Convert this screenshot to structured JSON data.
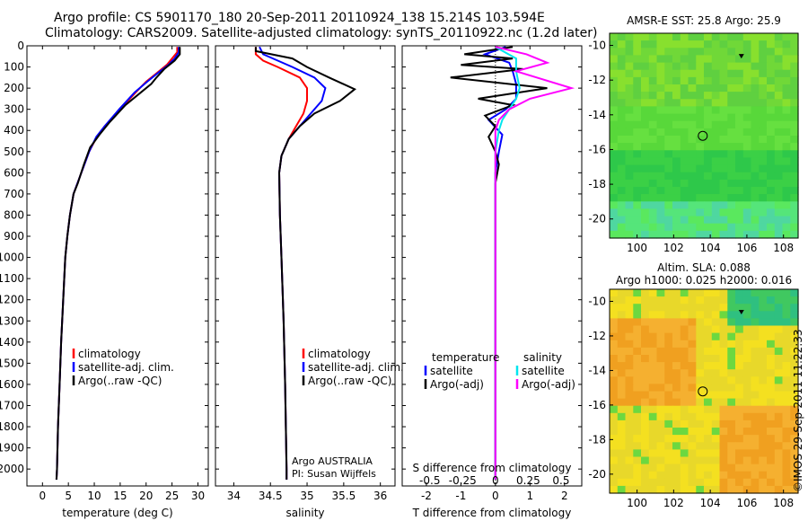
{
  "header": {
    "line1": "Argo profile: CS 5901170_180 20-Sep-2011 20110924_138 15.214S 103.594E",
    "line2": "Climatology: CARS2009. Satellite-adjusted climatology: synTS_20110922.nc (1.2d later)"
  },
  "colors": {
    "climatology": "#ff0000",
    "satellite": "#0000ff",
    "argo": "#000000",
    "sat_salinity": "#00e5ee",
    "argo_salinity_adj": "#ff00ff"
  },
  "chart_data": [
    {
      "type": "line",
      "id": "temperature",
      "xlabel": "temperature (deg C)",
      "xlim": [
        -3,
        32
      ],
      "ylim": [
        2080,
        0
      ],
      "xticks": [
        0,
        5,
        10,
        15,
        20,
        25,
        30
      ],
      "yticks": [
        0,
        100,
        200,
        300,
        400,
        500,
        600,
        700,
        800,
        900,
        1000,
        1100,
        1200,
        1300,
        1400,
        1500,
        1600,
        1700,
        1800,
        1900,
        2000
      ],
      "legend": [
        "climatology",
        "satellite-adj. clim.",
        "Argo(..raw -QC)"
      ],
      "series": [
        {
          "name": "climatology",
          "color": "#ff0000",
          "points": [
            [
              26,
              5
            ],
            [
              26,
              30
            ],
            [
              25,
              60
            ],
            [
              24,
              90
            ],
            [
              22,
              130
            ],
            [
              20,
              170
            ],
            [
              18,
              220
            ],
            [
              15,
              300
            ],
            [
              12,
              380
            ],
            [
              10.5,
              430
            ],
            [
              9,
              500
            ],
            [
              7.5,
              600
            ],
            [
              6,
              700
            ],
            [
              5.3,
              800
            ],
            [
              4.8,
              900
            ],
            [
              4.4,
              1000
            ],
            [
              4,
              1200
            ],
            [
              3.6,
              1400
            ],
            [
              3.3,
              1600
            ],
            [
              3,
              1800
            ],
            [
              2.8,
              2000
            ],
            [
              2.7,
              2050
            ]
          ]
        },
        {
          "name": "satellite-adj. clim.",
          "color": "#0000ff",
          "points": [
            [
              26.3,
              5
            ],
            [
              26.3,
              30
            ],
            [
              25.5,
              60
            ],
            [
              24.3,
              90
            ],
            [
              22.2,
              130
            ],
            [
              20.2,
              170
            ],
            [
              17.8,
              220
            ],
            [
              14.8,
              300
            ],
            [
              12,
              380
            ],
            [
              10.4,
              430
            ],
            [
              9,
              500
            ],
            [
              7.5,
              600
            ],
            [
              6,
              700
            ],
            [
              5.3,
              800
            ],
            [
              4.8,
              900
            ],
            [
              4.4,
              1000
            ],
            [
              4,
              1200
            ],
            [
              3.6,
              1400
            ],
            [
              3.3,
              1600
            ],
            [
              3,
              1800
            ],
            [
              2.8,
              2000
            ],
            [
              2.7,
              2050
            ]
          ]
        },
        {
          "name": "Argo(..raw -QC)",
          "color": "#000000",
          "points": [
            [
              26.5,
              5
            ],
            [
              26.5,
              40
            ],
            [
              25.5,
              70
            ],
            [
              23.5,
              110
            ],
            [
              22,
              150
            ],
            [
              21,
              180
            ],
            [
              19,
              220
            ],
            [
              16,
              280
            ],
            [
              13,
              360
            ],
            [
              11,
              420
            ],
            [
              9.2,
              480
            ],
            [
              8,
              560
            ],
            [
              6.8,
              650
            ],
            [
              6,
              700
            ],
            [
              5.3,
              800
            ],
            [
              4.8,
              900
            ],
            [
              4.4,
              1000
            ],
            [
              4,
              1200
            ],
            [
              3.6,
              1400
            ],
            [
              3.3,
              1600
            ],
            [
              3,
              1800
            ],
            [
              2.8,
              2000
            ],
            [
              2.7,
              2050
            ]
          ]
        }
      ]
    },
    {
      "type": "line",
      "id": "salinity",
      "xlabel": "salinity",
      "xlim": [
        33.75,
        36.2
      ],
      "ylim": [
        2080,
        0
      ],
      "xticks": [
        34,
        34.5,
        35,
        35.5,
        36
      ],
      "legend": [
        "climatology",
        "satellite-adj. clim.",
        "Argo(..raw -QC)"
      ],
      "annotations": [
        "Argo AUSTRALIA",
        "PI: Susan Wijffels"
      ],
      "series": [
        {
          "name": "climatology",
          "color": "#ff0000",
          "points": [
            [
              34.3,
              5
            ],
            [
              34.3,
              40
            ],
            [
              34.4,
              70
            ],
            [
              34.6,
              100
            ],
            [
              34.9,
              150
            ],
            [
              35.0,
              200
            ],
            [
              35.0,
              260
            ],
            [
              34.95,
              320
            ],
            [
              34.85,
              380
            ],
            [
              34.75,
              440
            ],
            [
              34.65,
              520
            ],
            [
              34.62,
              600
            ],
            [
              34.63,
              800
            ],
            [
              34.65,
              1000
            ],
            [
              34.68,
              1300
            ],
            [
              34.7,
              1600
            ],
            [
              34.72,
              2000
            ],
            [
              34.72,
              2050
            ]
          ]
        },
        {
          "name": "satellite-adj. clim.",
          "color": "#0000ff",
          "points": [
            [
              34.35,
              5
            ],
            [
              34.4,
              40
            ],
            [
              34.6,
              70
            ],
            [
              34.8,
              100
            ],
            [
              35.1,
              150
            ],
            [
              35.25,
              200
            ],
            [
              35.2,
              260
            ],
            [
              35.05,
              320
            ],
            [
              34.9,
              380
            ],
            [
              34.75,
              440
            ],
            [
              34.65,
              520
            ],
            [
              34.62,
              600
            ],
            [
              34.63,
              800
            ],
            [
              34.65,
              1000
            ],
            [
              34.68,
              1300
            ],
            [
              34.7,
              1600
            ],
            [
              34.72,
              2000
            ],
            [
              34.72,
              2050
            ]
          ]
        },
        {
          "name": "Argo(..raw -QC)",
          "color": "#000000",
          "points": [
            [
              34.3,
              5
            ],
            [
              34.3,
              25
            ],
            [
              34.8,
              60
            ],
            [
              35.0,
              100
            ],
            [
              35.3,
              150
            ],
            [
              35.65,
              205
            ],
            [
              35.45,
              260
            ],
            [
              35.1,
              320
            ],
            [
              34.9,
              380
            ],
            [
              34.75,
              440
            ],
            [
              34.65,
              520
            ],
            [
              34.62,
              600
            ],
            [
              34.63,
              800
            ],
            [
              34.65,
              1000
            ],
            [
              34.68,
              1300
            ],
            [
              34.7,
              1600
            ],
            [
              34.72,
              2000
            ],
            [
              34.72,
              2050
            ]
          ]
        }
      ]
    },
    {
      "type": "line",
      "id": "difference",
      "xlabel": "T difference from climatology",
      "xlabel_top": "S difference from climatology",
      "xlim": [
        -2.7,
        2.5
      ],
      "ylim": [
        2080,
        0
      ],
      "xticks": [
        -2,
        -1,
        0,
        1,
        2
      ],
      "s_ticks": [
        {
          "label": "-0.5",
          "t": -1.9
        },
        {
          "label": "-0.25",
          "t": -0.95
        },
        {
          "label": "0",
          "t": 0
        },
        {
          "label": "0.25",
          "t": 0.95
        },
        {
          "label": "0.5",
          "t": 1.9
        }
      ],
      "legend_left": {
        "title": "temperature",
        "items": [
          "satellite",
          "Argo(-adj)"
        ]
      },
      "legend_right": {
        "title": "salinity",
        "items": [
          "satellite",
          "Argo(-adj)"
        ]
      },
      "series": [
        {
          "name": "T satellite",
          "color": "#0000ff",
          "points": [
            [
              0.3,
              5
            ],
            [
              -0.3,
              40
            ],
            [
              0.4,
              80
            ],
            [
              0.5,
              120
            ],
            [
              0.6,
              180
            ],
            [
              0.6,
              250
            ],
            [
              0.3,
              300
            ],
            [
              -0.2,
              350
            ],
            [
              0.2,
              420
            ],
            [
              0.1,
              500
            ],
            [
              0,
              600
            ],
            [
              0,
              1000
            ],
            [
              0,
              2050
            ]
          ]
        },
        {
          "name": "T Argo(-adj)",
          "color": "#000000",
          "points": [
            [
              0.5,
              5
            ],
            [
              -0.9,
              40
            ],
            [
              0.5,
              60
            ],
            [
              -1.0,
              90
            ],
            [
              0.8,
              110
            ],
            [
              -1.3,
              150
            ],
            [
              1.5,
              200
            ],
            [
              -0.5,
              250
            ],
            [
              0.5,
              280
            ],
            [
              -0.3,
              330
            ],
            [
              0,
              380
            ],
            [
              -0.2,
              430
            ],
            [
              0,
              500
            ],
            [
              0.1,
              560
            ],
            [
              0,
              650
            ],
            [
              0,
              1000
            ],
            [
              0,
              2050
            ]
          ]
        },
        {
          "name": "S satellite",
          "color": "#00e5ee",
          "points": [
            [
              0,
              5
            ],
            [
              0.6,
              60
            ],
            [
              0.6,
              120
            ],
            [
              0.7,
              200
            ],
            [
              0.6,
              250
            ],
            [
              0.4,
              300
            ],
            [
              0.2,
              350
            ],
            [
              0.1,
              400
            ],
            [
              0,
              500
            ],
            [
              0,
              700
            ],
            [
              0,
              1000
            ],
            [
              0,
              2050
            ]
          ]
        },
        {
          "name": "S Argo(-adj)",
          "color": "#ff00ff",
          "points": [
            [
              0,
              5
            ],
            [
              0.9,
              40
            ],
            [
              1.5,
              80
            ],
            [
              0.6,
              120
            ],
            [
              2.2,
              200
            ],
            [
              1.0,
              250
            ],
            [
              0.4,
              300
            ],
            [
              0.1,
              350
            ],
            [
              0,
              400
            ],
            [
              0,
              700
            ],
            [
              0,
              1000
            ],
            [
              0,
              2050
            ]
          ]
        }
      ]
    }
  ],
  "maps": {
    "sst": {
      "title": "AMSR-E SST: 25.8 Argo: 25.9",
      "xticks": [
        100,
        102,
        104,
        106,
        108
      ],
      "yticks": [
        -10,
        -12,
        -14,
        -16,
        -18,
        -20
      ],
      "xlim": [
        98.5,
        108.8
      ],
      "ylim": [
        -21.1,
        -9.3
      ],
      "argo_marker": [
        103.59,
        -15.21
      ],
      "tri_marker": [
        105.7,
        -10.6
      ]
    },
    "sla": {
      "title1": "Altim. SLA: 0.088",
      "title2": "Argo h1000: 0.025 h2000: 0.016",
      "xticks": [
        100,
        102,
        104,
        106,
        108
      ],
      "yticks": [
        -10,
        -12,
        -14,
        -16,
        -18,
        -20
      ],
      "xlim": [
        98.5,
        108.8
      ],
      "ylim": [
        -21.1,
        -9.3
      ],
      "argo_marker": [
        103.59,
        -15.21
      ],
      "tri_marker": [
        105.7,
        -10.6
      ]
    }
  },
  "watermark": "©IMOS 29-Sep-2011 11:22:33"
}
